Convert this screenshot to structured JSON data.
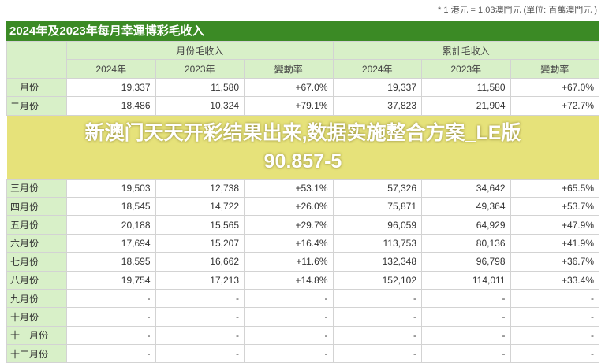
{
  "note": "* 1 港元 = 1.03澳門元 (單位: 百萬澳門元 )",
  "title": "2024年及2023年每月幸運博彩毛收入",
  "groups": [
    "月份毛收入",
    "累計毛收入"
  ],
  "subheaders": [
    "2024年",
    "2023年",
    "變動率",
    "2024年",
    "2023年",
    "變動率"
  ],
  "rows": [
    {
      "month": "一月份",
      "cells": [
        "19,337",
        "11,580",
        "+67.0%",
        "19,337",
        "11,580",
        "+67.0%"
      ]
    },
    {
      "month": "二月份",
      "cells": [
        "18,486",
        "10,324",
        "+79.1%",
        "37,823",
        "21,904",
        "+72.7%"
      ]
    },
    {
      "month": "三月份",
      "cells": [
        "19,503",
        "12,738",
        "+53.1%",
        "57,326",
        "34,642",
        "+65.5%"
      ]
    },
    {
      "month": "四月份",
      "cells": [
        "18,545",
        "14,722",
        "+26.0%",
        "75,871",
        "49,364",
        "+53.7%"
      ]
    },
    {
      "month": "五月份",
      "cells": [
        "20,188",
        "15,565",
        "+29.7%",
        "96,059",
        "64,929",
        "+47.9%"
      ]
    },
    {
      "month": "六月份",
      "cells": [
        "17,694",
        "15,207",
        "+16.4%",
        "113,753",
        "80,136",
        "+41.9%"
      ]
    },
    {
      "month": "七月份",
      "cells": [
        "18,595",
        "16,662",
        "+11.6%",
        "132,348",
        "96,798",
        "+36.7%"
      ]
    },
    {
      "month": "八月份",
      "cells": [
        "19,754",
        "17,213",
        "+14.8%",
        "152,102",
        "114,011",
        "+33.4%"
      ]
    },
    {
      "month": "九月份",
      "cells": [
        "-",
        "-",
        "-",
        "-",
        "-",
        "-"
      ]
    },
    {
      "month": "十月份",
      "cells": [
        "-",
        "-",
        "-",
        "-",
        "-",
        "-"
      ]
    },
    {
      "month": "十一月份",
      "cells": [
        "-",
        "-",
        "-",
        "-",
        "-",
        "-"
      ]
    },
    {
      "month": "十二月份",
      "cells": [
        "-",
        "-",
        "-",
        "-",
        "-",
        "-"
      ]
    }
  ],
  "overlay": {
    "line1": "新澳门天天开彩结果出来,数据实施整合方案_LE版",
    "line2": "90.857-5"
  },
  "colors": {
    "title_bg": "#3b8a25",
    "header_bg": "#d8f0c8"
  }
}
